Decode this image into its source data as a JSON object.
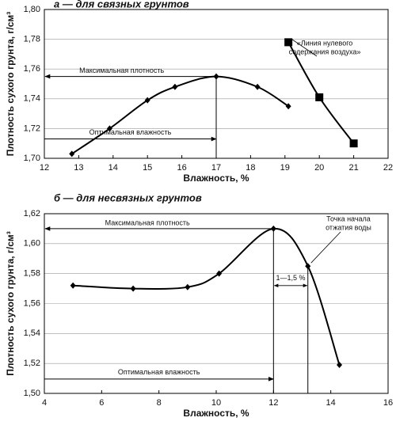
{
  "chart_data": [
    {
      "type": "line",
      "title": "а — для связных грунтов",
      "x_label": "Влажность, %",
      "y_label": "Плотность сухого грунта, г/см³",
      "xlim": [
        12,
        22
      ],
      "xticks": [
        12,
        13,
        14,
        15,
        16,
        17,
        18,
        19,
        20,
        21,
        22
      ],
      "ylim": [
        1.7,
        1.8
      ],
      "yticks": [
        {
          "value": 1.7,
          "label": "1,70"
        },
        {
          "value": 1.72,
          "label": "1,72"
        },
        {
          "value": 1.74,
          "label": "1,74"
        },
        {
          "value": 1.76,
          "label": "1,76"
        },
        {
          "value": 1.78,
          "label": "1,78"
        },
        {
          "value": 1.8,
          "label": "1,80"
        }
      ],
      "grid": true,
      "series": [
        {
          "x": [
            12.8,
            13.9,
            15.0,
            15.8,
            17.0,
            18.2,
            19.1
          ],
          "values": [
            1.703,
            1.72,
            1.739,
            1.748,
            1.755,
            1.748,
            1.735
          ],
          "marker": "diamond",
          "color": "#000000"
        },
        {
          "x": [
            19.1,
            20.0,
            21.0
          ],
          "values": [
            1.778,
            1.741,
            1.71
          ],
          "marker": "square",
          "color": "#000000"
        }
      ],
      "annotations": {
        "max_density": "Максимальная плотность",
        "optimal_moisture": "Оптимальная влажность",
        "note": [
          "«Линия нулевого",
          "содержания воздуха»"
        ]
      }
    },
    {
      "type": "line",
      "title": "б — для несвязных грунтов",
      "x_label": "Влажность, %",
      "y_label": "Плотность сухого грунта, г/см³",
      "xlim": [
        4,
        16
      ],
      "xticks": [
        4,
        6,
        8,
        10,
        12,
        14,
        16
      ],
      "ylim": [
        1.5,
        1.62
      ],
      "yticks": [
        {
          "value": 1.5,
          "label": "1,50"
        },
        {
          "value": 1.52,
          "label": "1,52"
        },
        {
          "value": 1.54,
          "label": "1,54"
        },
        {
          "value": 1.56,
          "label": "1,56"
        },
        {
          "value": 1.58,
          "label": "1,58"
        },
        {
          "value": 1.6,
          "label": "1,60"
        },
        {
          "value": 1.62,
          "label": "1,62"
        }
      ],
      "grid": true,
      "series": [
        {
          "x": [
            5.0,
            7.1,
            9.0,
            10.1,
            12.0,
            13.2,
            14.3
          ],
          "values": [
            1.572,
            1.57,
            1.571,
            1.58,
            1.61,
            1.585,
            1.519
          ],
          "marker": "diamond",
          "color": "#000000"
        }
      ],
      "annotations": {
        "max_density": "Максимальная плотность",
        "optimal_moisture": "Оптимальная влажность",
        "note": [
          "Точка начала",
          "отжатия воды"
        ],
        "range": "1—1,5 %"
      }
    }
  ]
}
